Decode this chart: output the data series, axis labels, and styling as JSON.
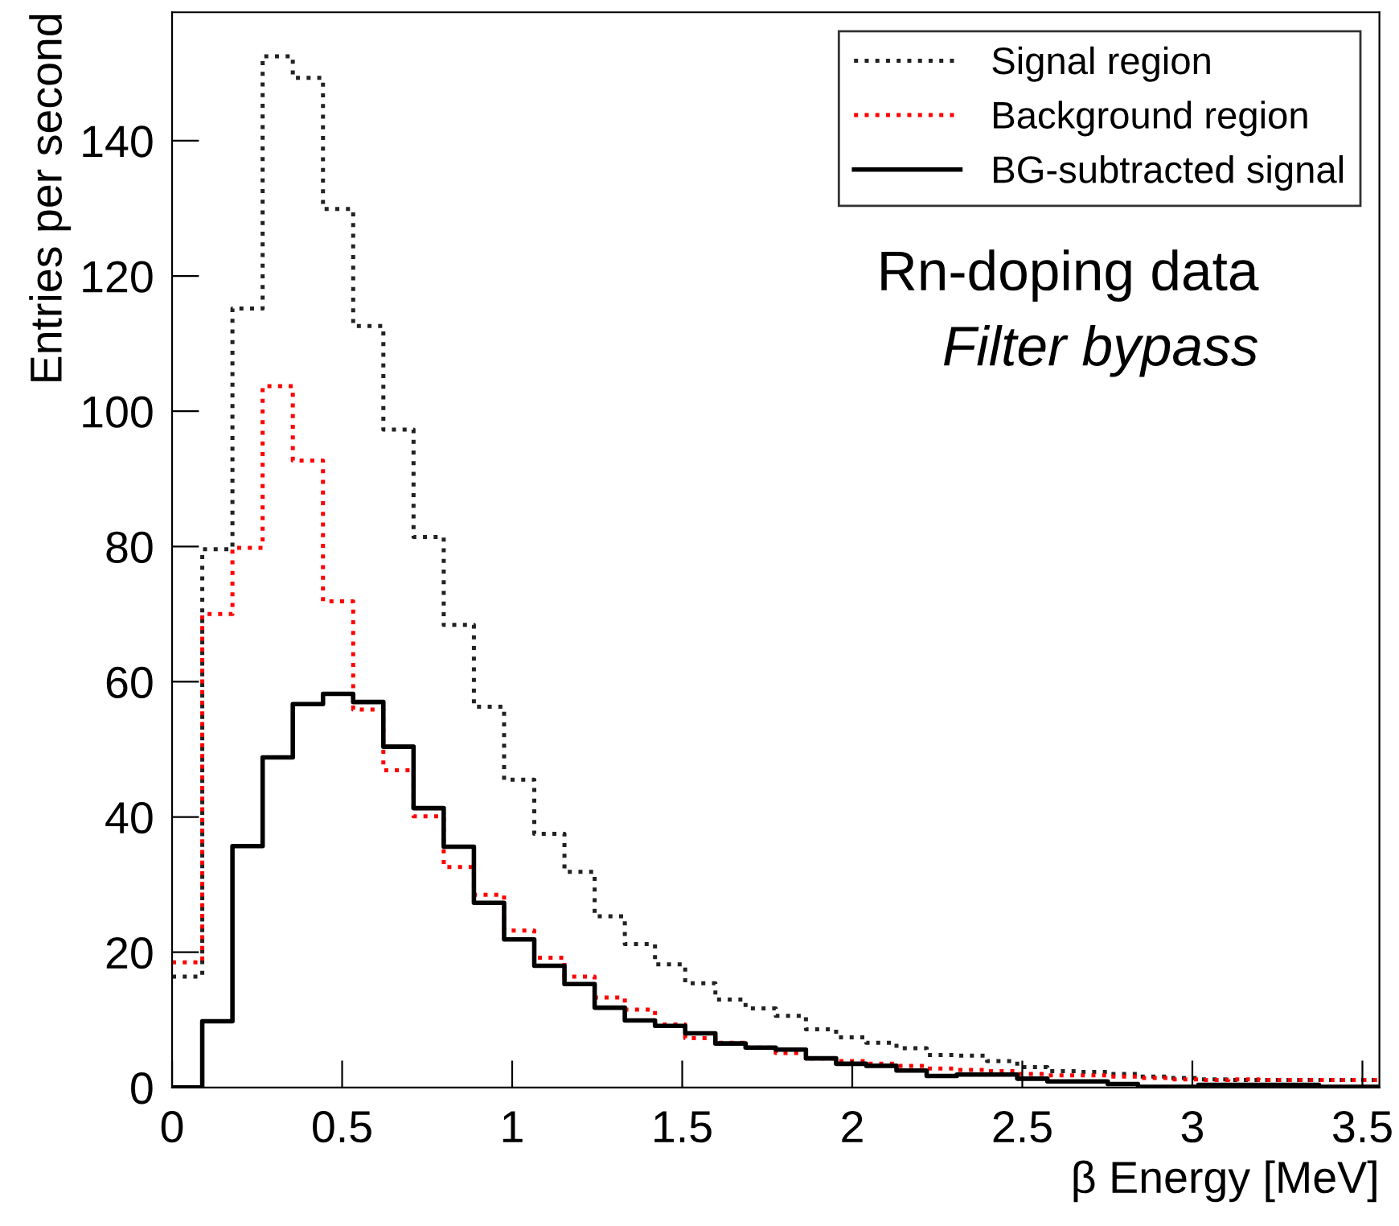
{
  "chart_data": {
    "type": "histogram",
    "xlabel": "β Energy [MeV]",
    "ylabel": "Entries per second",
    "annotations": [
      "Rn-doping data",
      "Filter bypass"
    ],
    "bins": [
      0,
      0.08875,
      0.1775,
      0.26625,
      0.355,
      0.44375,
      0.5325,
      0.62125,
      0.71,
      0.79875,
      0.8875,
      0.97625,
      1.065,
      1.15375,
      1.2425,
      1.33125,
      1.42,
      1.50875,
      1.5975,
      1.68625,
      1.775,
      1.86375,
      1.9525,
      2.04125,
      2.13,
      2.21875,
      2.3075,
      2.39625,
      2.485,
      2.57375,
      2.6625,
      2.75125,
      2.84,
      2.92875,
      3.0175,
      3.10625,
      3.195,
      3.28375,
      3.3725,
      3.46125,
      3.55
    ],
    "series": [
      {
        "name": "Signal region",
        "color": "#222222",
        "line_style": "dotted",
        "values": [
          16.4,
          79.6,
          115.2,
          152.5,
          149.3,
          129.9,
          112.6,
          97.3,
          81.4,
          68.4,
          56.3,
          45.5,
          37.5,
          31.9,
          25.3,
          21.2,
          18.2,
          15.4,
          13.0,
          11.7,
          10.6,
          8.6,
          7.4,
          6.6,
          5.8,
          4.8,
          4.7,
          3.9,
          3.0,
          2.4,
          2.3,
          2.0,
          1.6,
          1.4,
          1.2,
          1.1,
          1.1,
          1.1,
          1.1,
          1.1
        ]
      },
      {
        "name": "Background region",
        "color": "#ff0000",
        "line_style": "dotted",
        "values": [
          18.5,
          70.0,
          79.8,
          103.7,
          92.7,
          71.9,
          55.9,
          46.9,
          40.1,
          32.6,
          28.5,
          23.2,
          19.2,
          16.4,
          13.3,
          11.5,
          9.3,
          7.3,
          6.6,
          5.9,
          5.1,
          4.3,
          3.9,
          3.5,
          3.2,
          2.8,
          2.6,
          2.4,
          2.0,
          1.8,
          1.8,
          1.6,
          1.4,
          1.2,
          1.1,
          1.2,
          1.1,
          1.1,
          1.1,
          1.1
        ]
      },
      {
        "name": "BG-subtracted signal",
        "color": "#000000",
        "line_style": "solid",
        "values": [
          0,
          9.8,
          35.7,
          48.8,
          56.7,
          58.2,
          57.0,
          50.4,
          41.3,
          35.6,
          27.3,
          21.9,
          18.0,
          15.3,
          11.8,
          9.9,
          9.1,
          8.0,
          6.5,
          5.9,
          5.6,
          4.3,
          3.5,
          3.2,
          2.5,
          1.7,
          1.9,
          1.9,
          1.3,
          0.9,
          0.9,
          0.5,
          0.1,
          0.1,
          0.4,
          0.4,
          0.4,
          0.4,
          0.1,
          0.1
        ]
      }
    ],
    "xlim": [
      0,
      3.55
    ],
    "ylim": [
      0,
      159
    ],
    "xticks": [
      0,
      0.5,
      1,
      1.5,
      2,
      2.5,
      3,
      3.5
    ],
    "yticks": [
      0,
      20,
      40,
      60,
      80,
      100,
      120,
      140
    ],
    "grid": false,
    "legend": "top right"
  }
}
